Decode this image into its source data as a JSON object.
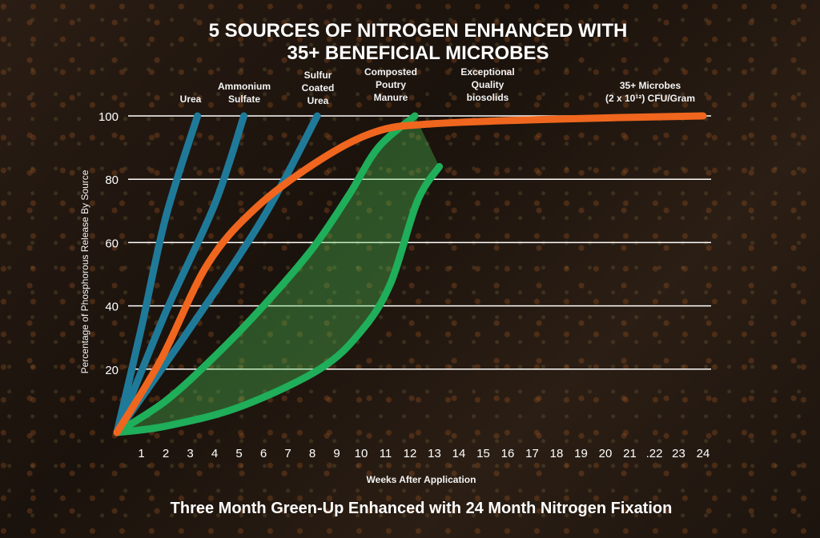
{
  "chart_data": {
    "type": "line",
    "title": [
      "5 SOURCES OF NITROGEN ENHANCED WITH",
      "35+  BENEFICIAL MICROBES"
    ],
    "subtitle": "Three Month Green-Up Enhanced with 24 Month Nitrogen Fixation",
    "xlabel": "Weeks After Application",
    "ylabel": "Percentage of Phosphorous Release By Source",
    "xlim": [
      0,
      24
    ],
    "ylim": [
      0,
      100
    ],
    "xticks": [
      "1",
      "2",
      "3",
      "4",
      "5",
      "6",
      "7",
      "8",
      "9",
      "10",
      "11",
      "12",
      "13",
      "14",
      "15",
      "16",
      "17",
      "18",
      "19",
      "20",
      "21",
      ".22",
      "23",
      "24"
    ],
    "yticks": [
      20,
      40,
      60,
      80,
      100
    ],
    "grid": "horizontal",
    "series": [
      {
        "name": "Urea",
        "color": "#1f7a99",
        "points": [
          [
            0,
            0
          ],
          [
            1,
            33
          ],
          [
            2,
            68
          ],
          [
            3.3,
            100
          ]
        ]
      },
      {
        "name": "Ammonium Sulfate",
        "color": "#1f7a99",
        "points": [
          [
            0,
            0
          ],
          [
            2,
            38
          ],
          [
            4,
            72
          ],
          [
            5.2,
            100
          ]
        ]
      },
      {
        "name": "Sulfur Coated Urea",
        "color": "#1f7a99",
        "points": [
          [
            0,
            0
          ],
          [
            3,
            33
          ],
          [
            6,
            68
          ],
          [
            8.2,
            100
          ]
        ]
      },
      {
        "name": "Composted Poutry Manure",
        "color": "#1fae5a",
        "band": true,
        "upper": [
          [
            0,
            0
          ],
          [
            2,
            10
          ],
          [
            4,
            24
          ],
          [
            6,
            40
          ],
          [
            8,
            58
          ],
          [
            9.5,
            75
          ],
          [
            10.7,
            90
          ],
          [
            12.2,
            100
          ]
        ],
        "lower": [
          [
            0,
            0
          ],
          [
            2,
            2
          ],
          [
            5,
            8
          ],
          [
            8.3,
            20
          ],
          [
            10,
            32
          ],
          [
            11.2,
            47
          ],
          [
            12.3,
            73
          ],
          [
            13.2,
            84
          ]
        ]
      },
      {
        "name": "Exceptional Quality biosolids",
        "color": "#1fae5a"
      },
      {
        "name": "35+ Microbes (2 x 10¹²) CFU/Gram",
        "color": "#f0661e",
        "points": [
          [
            0,
            0
          ],
          [
            1.8,
            23
          ],
          [
            3.7,
            53
          ],
          [
            5.7,
            71
          ],
          [
            8.3,
            86
          ],
          [
            10.6,
            95
          ],
          [
            12.9,
            97.5
          ],
          [
            18,
            99
          ],
          [
            24,
            100
          ]
        ]
      }
    ],
    "labels": [
      {
        "lines": [
          "Urea"
        ]
      },
      {
        "lines": [
          "Ammonium",
          "Sulfate"
        ]
      },
      {
        "lines": [
          "Sulfur",
          "Coated",
          "Urea"
        ]
      },
      {
        "lines": [
          "Composted",
          "Poutry",
          "Manure"
        ]
      },
      {
        "lines": [
          "Exceptional",
          "Quality",
          "biosolids"
        ]
      },
      {
        "lines": [
          "35+ Microbes",
          "(2 x 10¹²) CFU/Gram"
        ]
      }
    ]
  }
}
